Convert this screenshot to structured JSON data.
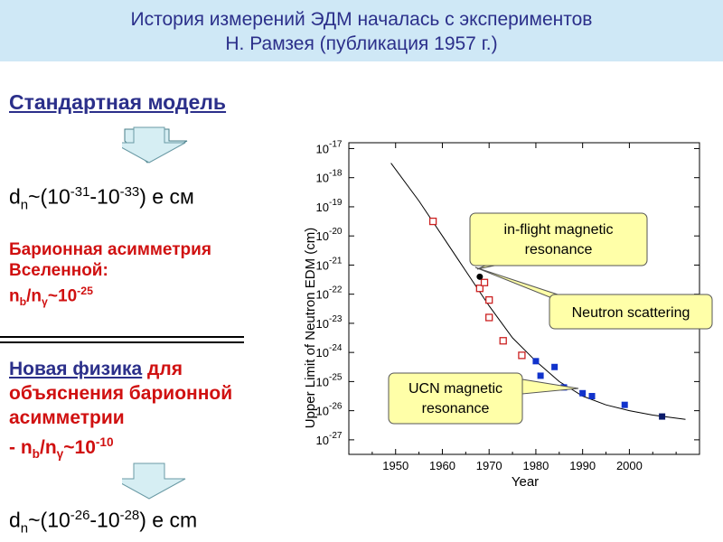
{
  "header": {
    "line1": "История измерений ЭДМ началась с экспериментов",
    "line2": "Н. Рамзея (публикация 1957 г.)"
  },
  "left": {
    "standard_model": "Стандартная модель",
    "dn1": {
      "pre": "d",
      "sub": "n",
      "mid1": "~(10",
      "exp1": "-31",
      "mid2": "-10",
      "exp2": "-33",
      "post": ") e см"
    },
    "baryon1": "Барионная асимметрия",
    "baryon2": "Вселенной:",
    "ratio1": {
      "a": "n",
      "a_sub": "b",
      "slash": "/n",
      "b_sub": "γ",
      "approx": "~10",
      "exp": "-25"
    },
    "new_physics": "Новая физика",
    "new_physics_tail": " для",
    "explain1": "объяснения барионной",
    "explain2": "асимметрии",
    "ratio2": {
      "prefix": "- n",
      "a_sub": "b",
      "slash": "/n",
      "b_sub": "γ",
      "approx": "~10",
      "exp": "-10"
    },
    "dn2": {
      "pre": "d",
      "sub": "n",
      "mid1": "~(10",
      "exp1": "-26",
      "mid2": "-10",
      "exp2": "-28",
      "post": ") e cm"
    }
  },
  "chart_data": {
    "type": "scatter",
    "xlabel": "Year",
    "ylabel": "Upper Limit of Neutron EDM (cm)",
    "xlim": [
      1940,
      2015
    ],
    "ylim": [
      -27.5,
      -16.8
    ],
    "y_scale": "log",
    "xticks": [
      1950,
      1960,
      1970,
      1980,
      1990,
      2000
    ],
    "yticks": [
      -17,
      -18,
      -19,
      -20,
      -21,
      -22,
      -23,
      -24,
      -25,
      -26,
      -27
    ],
    "series": [
      {
        "marker": "open-square",
        "color": "#cc2222",
        "x": [
          1958,
          1968,
          1969,
          1970,
          1970,
          1973,
          1977
        ],
        "y": [
          -19.5,
          -21.8,
          -21.6,
          -22.2,
          -22.8,
          -23.6,
          -24.1
        ]
      },
      {
        "marker": "filled-square",
        "color": "#1133cc",
        "x": [
          1980,
          1981,
          1984,
          1986,
          1990,
          1992,
          1999
        ],
        "y": [
          -24.3,
          -24.8,
          -24.5,
          -25.2,
          -25.4,
          -25.5,
          -25.8
        ]
      },
      {
        "marker": "filled-square",
        "color": "#0a1a6a",
        "x": [
          2007
        ],
        "y": [
          -26.2
        ]
      },
      {
        "marker": "filled-circle",
        "color": "#000000",
        "x": [
          1968
        ],
        "y": [
          -21.4
        ]
      }
    ],
    "trend": {
      "x": [
        1949,
        1955,
        1960,
        1965,
        1970,
        1975,
        1980,
        1985,
        1990,
        1995,
        2000,
        2005,
        2012
      ],
      "y": [
        -17.5,
        -18.8,
        -20.0,
        -21.2,
        -22.4,
        -23.5,
        -24.3,
        -25.0,
        -25.5,
        -25.8,
        -26.0,
        -26.15,
        -26.3
      ]
    },
    "annotations": [
      {
        "text": [
          "in-flight magnetic",
          "resonance"
        ]
      },
      {
        "text": [
          "Neutron  scattering"
        ]
      },
      {
        "text": [
          "UCN magnetic",
          "resonance"
        ]
      }
    ]
  },
  "colors": {
    "title_band": "#cfe8f6",
    "title_text": "#2b2f8a",
    "emphasis": "#d01010",
    "callout_fill": "#ffffa8",
    "arrow_fill": "#d6eef3"
  }
}
